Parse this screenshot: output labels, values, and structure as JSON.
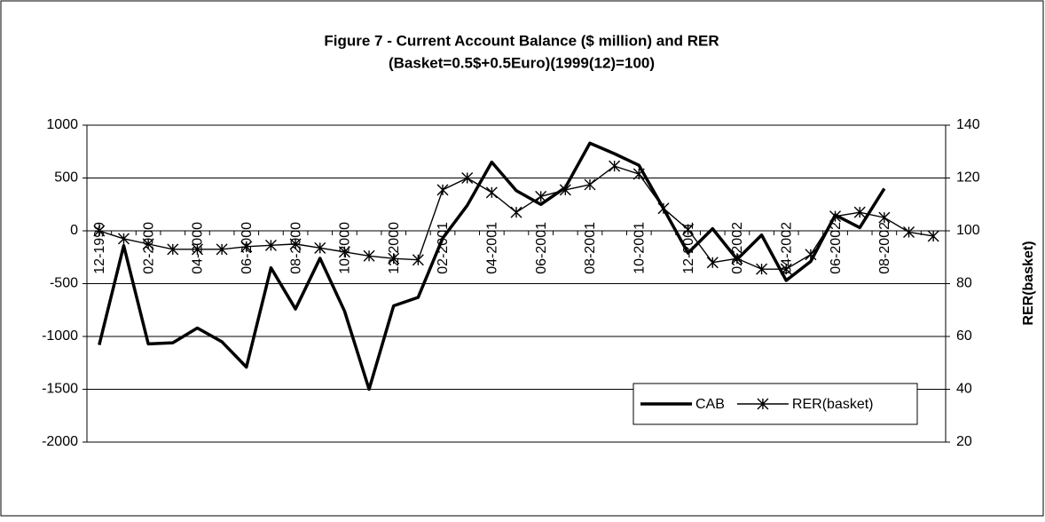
{
  "chart_data": {
    "type": "line",
    "title": "Figure 7 - Current Account Balance ($ million) and RER",
    "subtitle": "(Basket=0.5$+0.5Euro)(1999(12)=100)",
    "y2_label": "RER(basket)",
    "categories": [
      "12-1999",
      null,
      "02-2000",
      null,
      "04-2000",
      null,
      "06-2000",
      null,
      "08-2000",
      null,
      "10-2000",
      null,
      "12-2000",
      null,
      "02-2001",
      null,
      "04-2001",
      null,
      "06-2001",
      null,
      "08-2001",
      null,
      "10-2001",
      null,
      "12-2001",
      null,
      "02-2002",
      null,
      "04-2002",
      null,
      "06-2002",
      null,
      "08-2002",
      null,
      null
    ],
    "series": [
      {
        "name": "CAB",
        "color": "#000000",
        "marker": "none",
        "values": [
          -1080,
          -140,
          -1070,
          -1060,
          -920,
          -1050,
          -1290,
          -350,
          -740,
          -260,
          -760,
          -1500,
          -710,
          -630,
          -70,
          240,
          650,
          380,
          250,
          410,
          830,
          730,
          620,
          210,
          -210,
          20,
          -270,
          -40,
          -470,
          -290,
          150,
          30,
          400,
          null,
          null
        ]
      },
      {
        "name": "RER(basket)",
        "color": "#000000",
        "marker": "star",
        "axis": "y2",
        "values": [
          100,
          97,
          95,
          93,
          93,
          93,
          94,
          94.5,
          95,
          93.5,
          92,
          90.5,
          89.5,
          89,
          115.5,
          120,
          114.5,
          107,
          113,
          115.5,
          117.5,
          124.5,
          121.5,
          108.5,
          100.5,
          88,
          89.5,
          85.5,
          85.5,
          91,
          105.5,
          107,
          105,
          99.5,
          98
        ]
      }
    ],
    "ylim": [
      -2000,
      1000
    ],
    "yticks": [
      -2000,
      -1500,
      -1000,
      -500,
      0,
      500,
      1000
    ],
    "y2lim": [
      20,
      140
    ],
    "y2ticks": [
      20,
      40,
      60,
      80,
      100,
      120,
      140
    ],
    "grid": true,
    "legend": "lower-right"
  }
}
